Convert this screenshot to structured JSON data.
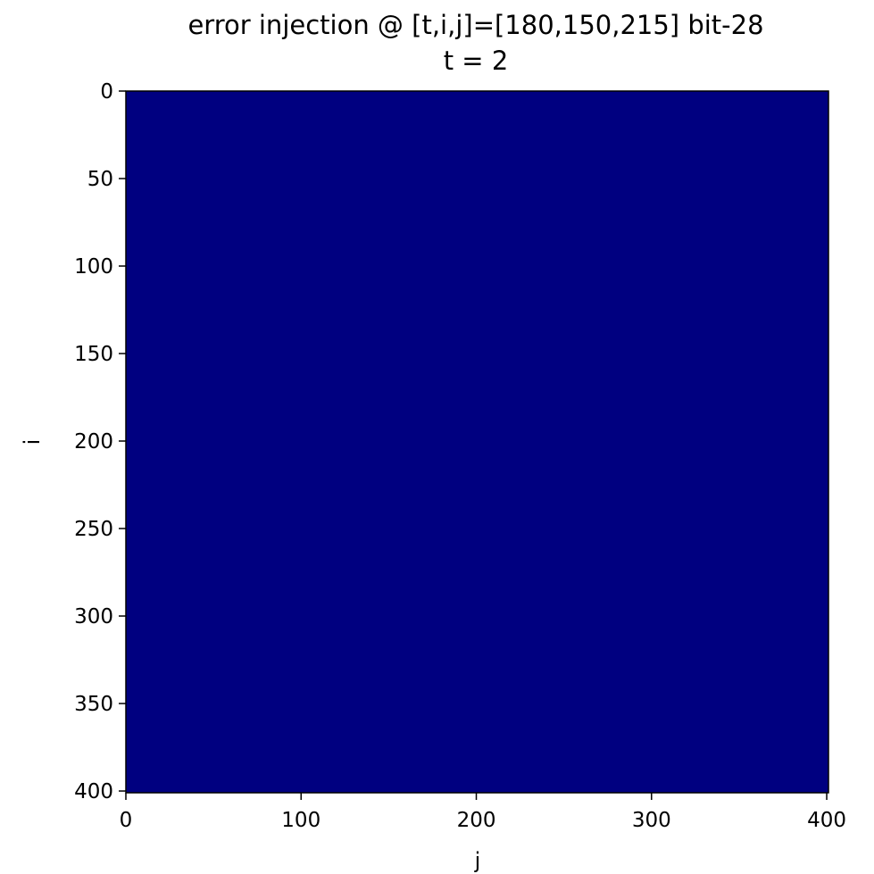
{
  "chart_data": {
    "type": "heatmap",
    "title": "error injection @ [t,i,j]=[180,150,215] bit-28",
    "subtitle": "t = 2",
    "xlabel": "j",
    "ylabel": "i",
    "xlim": [
      0,
      401
    ],
    "ylim": [
      401,
      0
    ],
    "x_ticks": [
      0,
      100,
      200,
      300,
      400
    ],
    "y_ticks": [
      0,
      50,
      100,
      150,
      200,
      250,
      300,
      350,
      400
    ],
    "x_tick_labels": [
      "0",
      "100",
      "200",
      "300",
      "400"
    ],
    "y_tick_labels": [
      "0",
      "50",
      "100",
      "150",
      "200",
      "250",
      "300",
      "350",
      "400"
    ],
    "grid": false,
    "colormap": "jet",
    "fill_color": "#000080",
    "values": "uniform (all cells at colormap minimum)"
  }
}
